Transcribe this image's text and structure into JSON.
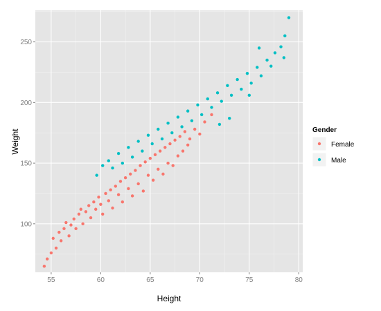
{
  "chart_data": {
    "type": "scatter",
    "xlabel": "Height",
    "ylabel": "Weight",
    "xlim": [
      53.4,
      80.4
    ],
    "ylim": [
      60,
      276
    ],
    "x_ticks": [
      55,
      60,
      65,
      70,
      75,
      80
    ],
    "y_ticks": [
      100,
      150,
      200,
      250
    ],
    "grid": true,
    "legend": {
      "title": "Gender",
      "placement": "right"
    },
    "series": [
      {
        "name": "Female",
        "color": "#F8766D",
        "points": [
          [
            54.3,
            65
          ],
          [
            54.6,
            71
          ],
          [
            55.0,
            76
          ],
          [
            55.2,
            88
          ],
          [
            55.5,
            80
          ],
          [
            55.8,
            93
          ],
          [
            56.0,
            86
          ],
          [
            56.3,
            96
          ],
          [
            56.5,
            101
          ],
          [
            56.8,
            90
          ],
          [
            57.0,
            99
          ],
          [
            57.3,
            104
          ],
          [
            57.5,
            96
          ],
          [
            57.8,
            108
          ],
          [
            58.0,
            112
          ],
          [
            58.2,
            100
          ],
          [
            58.5,
            110
          ],
          [
            58.8,
            115
          ],
          [
            59.0,
            105
          ],
          [
            59.3,
            118
          ],
          [
            59.5,
            112
          ],
          [
            59.8,
            122
          ],
          [
            60.0,
            116
          ],
          [
            60.2,
            108
          ],
          [
            60.5,
            125
          ],
          [
            60.8,
            119
          ],
          [
            61.0,
            128
          ],
          [
            61.2,
            113
          ],
          [
            61.5,
            131
          ],
          [
            61.8,
            124
          ],
          [
            62.0,
            135
          ],
          [
            62.2,
            118
          ],
          [
            62.5,
            138
          ],
          [
            62.8,
            129
          ],
          [
            63.0,
            141
          ],
          [
            63.2,
            123
          ],
          [
            63.5,
            144
          ],
          [
            63.8,
            133
          ],
          [
            64.0,
            148
          ],
          [
            64.3,
            127
          ],
          [
            64.5,
            151
          ],
          [
            64.8,
            140
          ],
          [
            65.0,
            154
          ],
          [
            65.3,
            136
          ],
          [
            65.5,
            157
          ],
          [
            65.8,
            145
          ],
          [
            66.0,
            160
          ],
          [
            66.3,
            141
          ],
          [
            66.5,
            163
          ],
          [
            66.8,
            150
          ],
          [
            67.0,
            166
          ],
          [
            67.3,
            148
          ],
          [
            67.5,
            169
          ],
          [
            67.8,
            156
          ],
          [
            68.0,
            172
          ],
          [
            68.3,
            160
          ],
          [
            68.5,
            176
          ],
          [
            68.8,
            165
          ],
          [
            69.0,
            170
          ],
          [
            69.5,
            178
          ],
          [
            70.0,
            174
          ],
          [
            70.5,
            184
          ],
          [
            71.2,
            190
          ]
        ]
      },
      {
        "name": "Male",
        "color": "#00BFC4",
        "points": [
          [
            59.6,
            140
          ],
          [
            60.2,
            148
          ],
          [
            60.8,
            152
          ],
          [
            61.2,
            146
          ],
          [
            61.8,
            158
          ],
          [
            62.2,
            150
          ],
          [
            62.8,
            163
          ],
          [
            63.2,
            155
          ],
          [
            63.8,
            168
          ],
          [
            64.2,
            160
          ],
          [
            64.8,
            173
          ],
          [
            65.2,
            166
          ],
          [
            65.8,
            178
          ],
          [
            66.2,
            170
          ],
          [
            66.8,
            183
          ],
          [
            67.2,
            175
          ],
          [
            67.8,
            188
          ],
          [
            68.2,
            180
          ],
          [
            68.8,
            193
          ],
          [
            69.2,
            185
          ],
          [
            69.8,
            198
          ],
          [
            70.2,
            190
          ],
          [
            70.8,
            203
          ],
          [
            71.2,
            196
          ],
          [
            71.8,
            208
          ],
          [
            72.2,
            201
          ],
          [
            72.8,
            214
          ],
          [
            73.2,
            206
          ],
          [
            73.8,
            219
          ],
          [
            74.2,
            211
          ],
          [
            74.8,
            224
          ],
          [
            75.2,
            216
          ],
          [
            75.8,
            229
          ],
          [
            76.2,
            222
          ],
          [
            76.8,
            235
          ],
          [
            77.2,
            230
          ],
          [
            77.6,
            241
          ],
          [
            78.2,
            246
          ],
          [
            78.6,
            255
          ],
          [
            79.0,
            270
          ],
          [
            78.5,
            237
          ],
          [
            76.0,
            245
          ],
          [
            73.0,
            187
          ],
          [
            75.0,
            206
          ],
          [
            72.0,
            182
          ]
        ]
      }
    ]
  }
}
